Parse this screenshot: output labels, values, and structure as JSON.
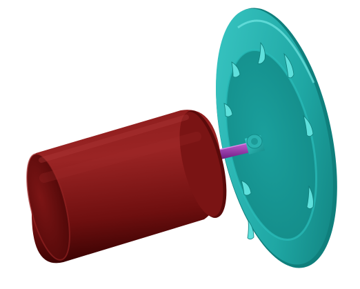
{
  "scene": {
    "subject": "motor-shaft-impeller-render",
    "colors": {
      "background": "#ffffff",
      "motor_light": "#9a2424",
      "motor_mid": "#6e0f0f",
      "motor_dark": "#3c0303",
      "shaft_light": "#c05fd0",
      "shaft_dark": "#5c0f73",
      "hub": "#2bb3b0",
      "disc_light": "#3cc9c6",
      "disc_mid": "#1fa7a4",
      "disc_dark": "#0e7b78",
      "vane": "#5fe0dc"
    }
  }
}
